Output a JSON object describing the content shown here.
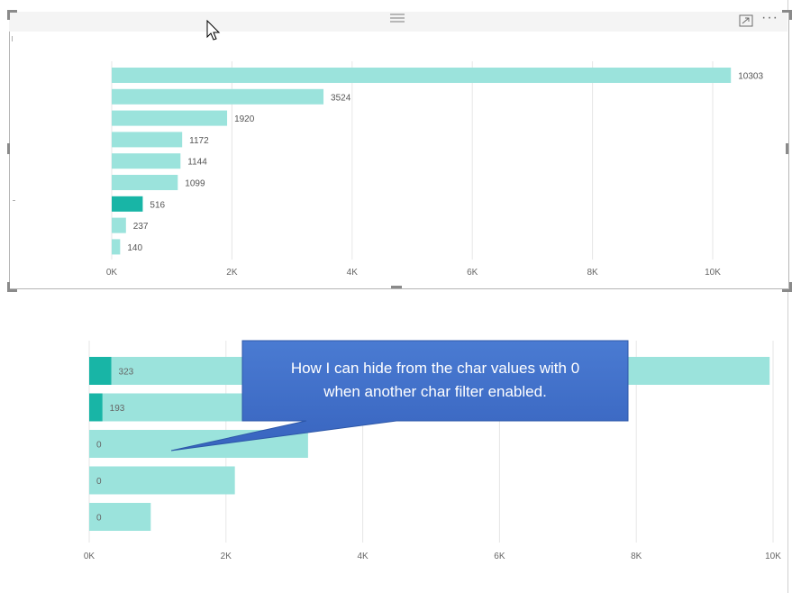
{
  "top_chart": {
    "chart_data": {
      "type": "bar",
      "orientation": "horizontal",
      "values": [
        10303,
        3524,
        1920,
        1172,
        1144,
        1099,
        516,
        237,
        140
      ],
      "highlighted_index": 6,
      "xlim": [
        0,
        11000
      ],
      "x_ticks": [
        "0K",
        "2K",
        "4K",
        "6K",
        "8K",
        "10K"
      ],
      "grid": true
    },
    "value_labels": [
      "10303",
      "3524",
      "1920",
      "1172",
      "1144",
      "1099",
      "516",
      "237",
      "140"
    ]
  },
  "bottom_chart": {
    "chart_data": {
      "type": "bar",
      "orientation": "horizontal",
      "series": [
        {
          "values": [
            9950,
            4500,
            3200,
            2130,
            900
          ],
          "color": "#9be3dc"
        },
        {
          "values": [
            323,
            193,
            0,
            0,
            0
          ],
          "color": "#18b5a6"
        }
      ],
      "xlim": [
        0,
        10000
      ],
      "x_ticks": [
        "0K",
        "2K",
        "4K",
        "6K",
        "8K",
        "10K"
      ],
      "grid": true
    },
    "value_labels": [
      "323",
      "193",
      "0",
      "0",
      "0"
    ]
  },
  "callout": {
    "line1": "How I can hide from the char values with 0",
    "line2": "when another char filter enabled."
  },
  "header": {
    "focus_icon": "focus-mode-icon",
    "more_icon": "more-options-icon",
    "more_glyph": "···"
  },
  "colors": {
    "bar_light": "#9be3dc",
    "bar_dark": "#18b5a6",
    "callout_fill": "#3f70c9",
    "grid": "#e6e6e6",
    "label": "#555555"
  }
}
